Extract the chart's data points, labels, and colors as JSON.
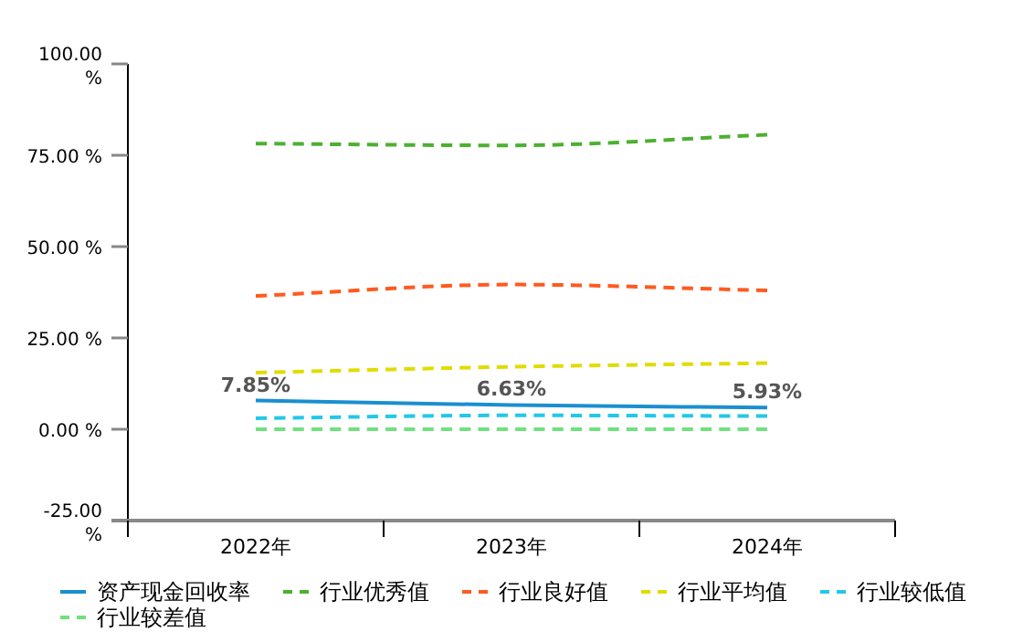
{
  "chart_data": {
    "type": "line",
    "categories": [
      "2022年",
      "2023年",
      "2024年"
    ],
    "ylim": [
      -25,
      100
    ],
    "yticks": [
      {
        "value": -25,
        "label": "-25.00 %"
      },
      {
        "value": 0,
        "label": "0.00 %"
      },
      {
        "value": 25,
        "label": "25.00 %"
      },
      {
        "value": 50,
        "label": "50.00 %"
      },
      {
        "value": 75,
        "label": "75.00 %"
      },
      {
        "value": 100,
        "label": "100.00 %"
      }
    ],
    "grid": false,
    "legend": "bottom",
    "marker": "none",
    "series": [
      {
        "name": "资产现金回收率",
        "color": "#1a8fd0",
        "values": [
          7.85,
          6.63,
          5.93
        ],
        "value_labels": [
          "7.85%",
          "6.63%",
          "5.93%"
        ],
        "line_style": "solid"
      },
      {
        "name": "行业优秀值",
        "color": "#4cb030",
        "values": [
          78.2,
          77.7,
          80.6
        ],
        "line_style": "dashed"
      },
      {
        "name": "行业良好值",
        "color": "#ff5a1f",
        "values": [
          36.5,
          39.6,
          38.0
        ],
        "line_style": "dashed"
      },
      {
        "name": "行业平均值",
        "color": "#e0dc00",
        "values": [
          15.5,
          17.1,
          18.1
        ],
        "line_style": "dashed"
      },
      {
        "name": "行业较低值",
        "color": "#22c8e8",
        "values": [
          3.0,
          3.8,
          3.6
        ],
        "line_style": "dashed"
      },
      {
        "name": "行业较差值",
        "color": "#70e080",
        "values": [
          0,
          0,
          0
        ],
        "line_style": "dashed"
      }
    ]
  }
}
